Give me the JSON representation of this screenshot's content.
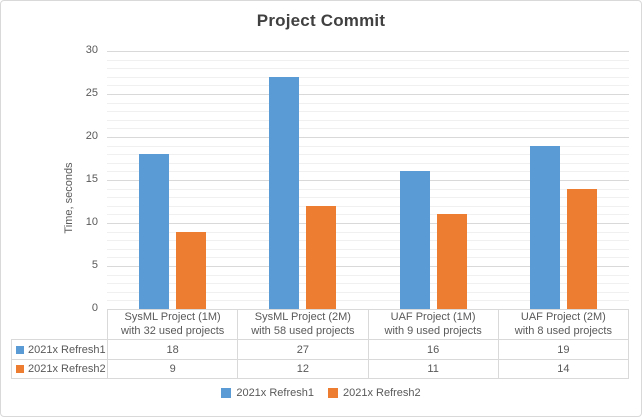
{
  "chart_data": {
    "type": "bar",
    "title": "Project Commit",
    "xlabel": "",
    "ylabel": "Time, seconds",
    "ylim": [
      0,
      30
    ],
    "ytick_step": 5,
    "minor_grid_step": 1,
    "grid": true,
    "legend_position": "bottom",
    "data_table_shown": true,
    "yticks": [
      0,
      5,
      10,
      15,
      20,
      25,
      30
    ],
    "categories": [
      "SysML Project (1M) with 32 used projects",
      "SysML Project (2M) with 58 used projects",
      "UAF Project (1M) with 9 used projects",
      "UAF Project (2M) with 8 used projects"
    ],
    "category_lines": [
      [
        "SysML Project (1M)",
        "with 32 used projects"
      ],
      [
        "SysML Project (2M)",
        "with 58 used projects"
      ],
      [
        "UAF Project (1M)",
        "with 9 used projects"
      ],
      [
        "UAF Project (2M)",
        "with 8 used projects"
      ]
    ],
    "series": [
      {
        "name": "2021x Refresh1",
        "color": "#5B9BD5",
        "values": [
          18,
          27,
          16,
          19
        ]
      },
      {
        "name": "2021x Refresh2",
        "color": "#ED7D31",
        "values": [
          9,
          12,
          11,
          14
        ]
      }
    ]
  },
  "colors": {
    "background": "#FFFFFF",
    "chart_border": "#D9D9D9",
    "major_gridline": "#D9D9D9",
    "minor_gridline": "#F0F0F0",
    "table_border": "#D9D9D9",
    "text": "#595959",
    "title_text": "#404040",
    "series_blue": "#5B9BD5",
    "series_orange": "#ED7D31"
  }
}
